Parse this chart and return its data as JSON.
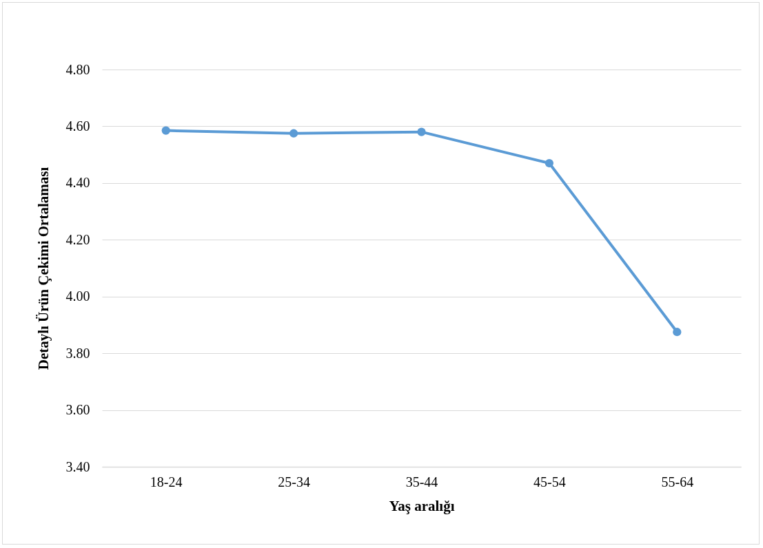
{
  "chart_data": {
    "type": "line",
    "xlabel": "Yaş aralığı",
    "ylabel": "Detaylı Ürün Çekimi Ortalaması",
    "categories": [
      "18-24",
      "25-34",
      "35-44",
      "45-54",
      "55-64"
    ],
    "series": [
      {
        "color": "#5b9bd5",
        "values": [
          4.585,
          4.575,
          4.58,
          4.47,
          3.875
        ]
      }
    ],
    "ylim": [
      3.4,
      4.8
    ],
    "yticks": [
      {
        "value": 3.4,
        "label": "3.40"
      },
      {
        "value": 3.6,
        "label": "3.60"
      },
      {
        "value": 3.8,
        "label": "3.80"
      },
      {
        "value": 4.0,
        "label": "4.00"
      },
      {
        "value": 4.2,
        "label": "4.20"
      },
      {
        "value": 4.4,
        "label": "4.40"
      },
      {
        "value": 4.6,
        "label": "4.60"
      },
      {
        "value": 4.8,
        "label": "4.80"
      }
    ],
    "grid": "y",
    "marker": "circle",
    "line_style": "solid",
    "legend": false
  }
}
